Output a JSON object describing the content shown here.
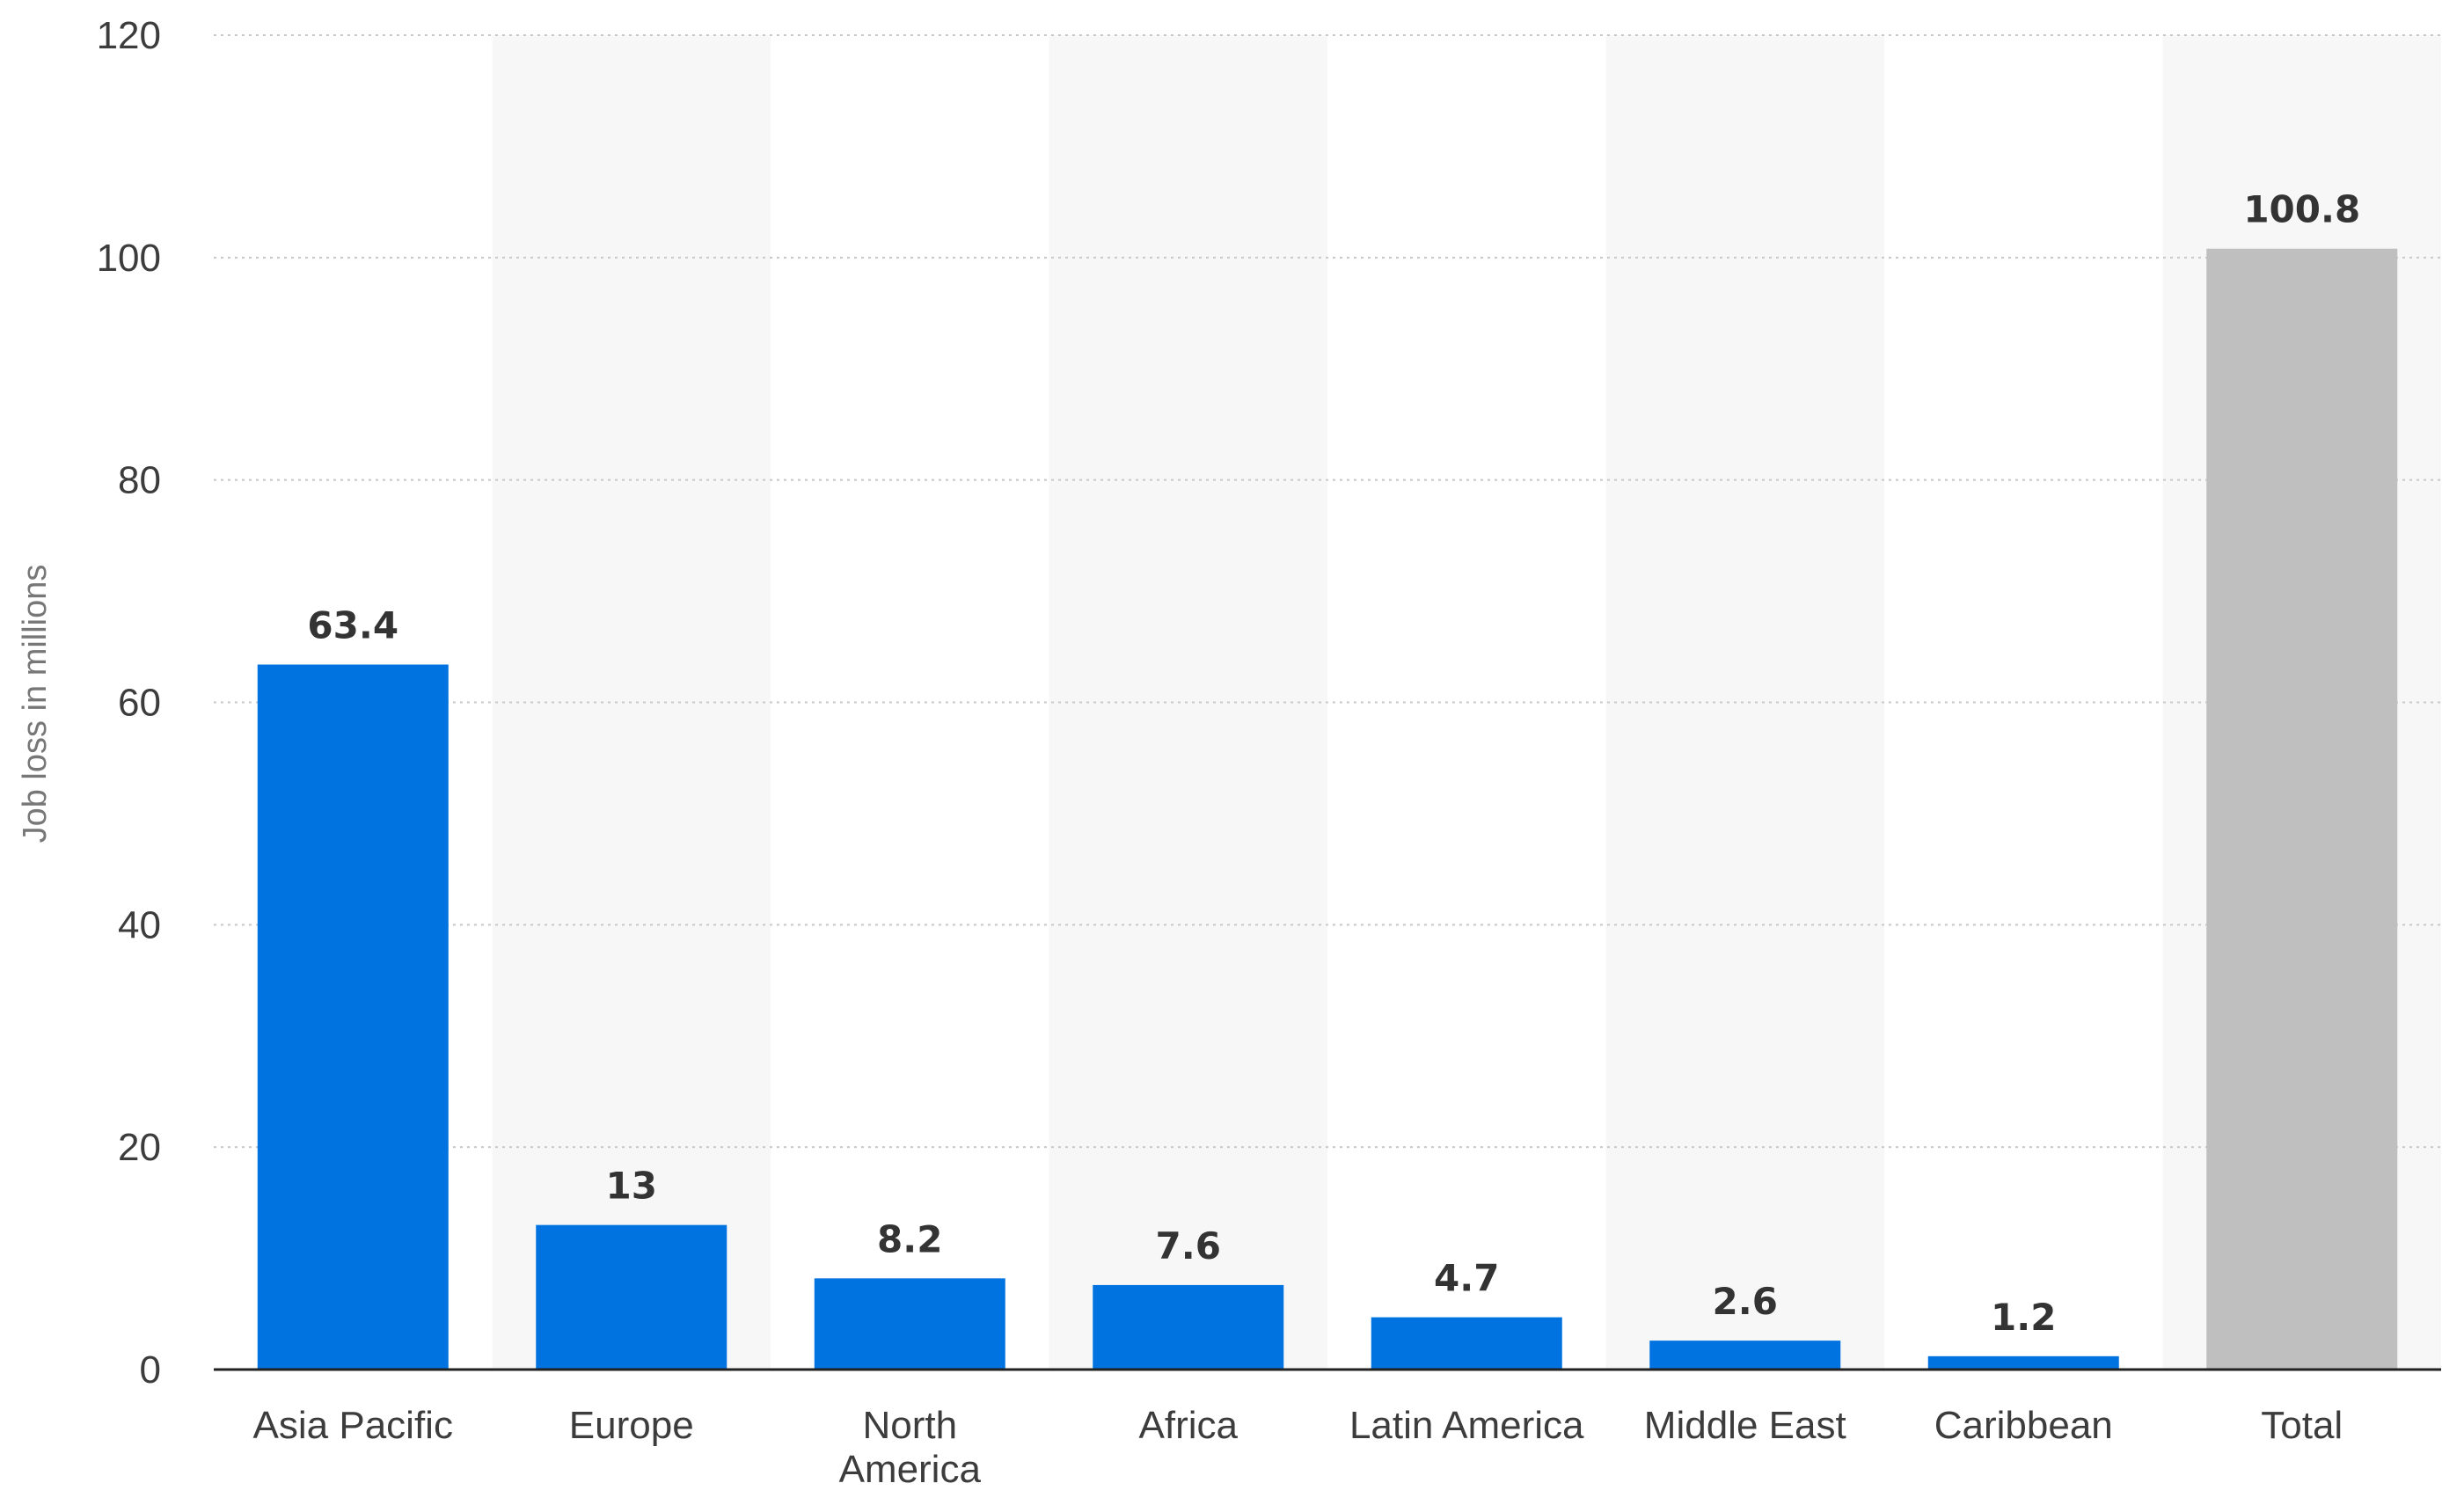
{
  "chart_data": {
    "type": "bar",
    "title": "",
    "xlabel": "",
    "ylabel": "Job loss in millions",
    "ylim": [
      0,
      120
    ],
    "yticks": [
      0,
      20,
      40,
      60,
      80,
      100,
      120
    ],
    "grid": true,
    "legend": "none",
    "categories": [
      "Asia Pacific",
      "Europe",
      "North America",
      "Africa",
      "Latin America",
      "Middle East",
      "Caribbean",
      "Total"
    ],
    "values": [
      63.4,
      13,
      8.2,
      7.6,
      4.7,
      2.6,
      1.2,
      100.8
    ],
    "value_labels": [
      "63.4",
      "13",
      "8.2",
      "7.6",
      "4.7",
      "2.6",
      "1.2",
      "100.8"
    ],
    "colors": {
      "bar": "#0073e1",
      "total_bar": "#bfbfbf",
      "band": "#f7f7f7",
      "grid": "#c8c8c8",
      "axis": "#222222"
    }
  }
}
